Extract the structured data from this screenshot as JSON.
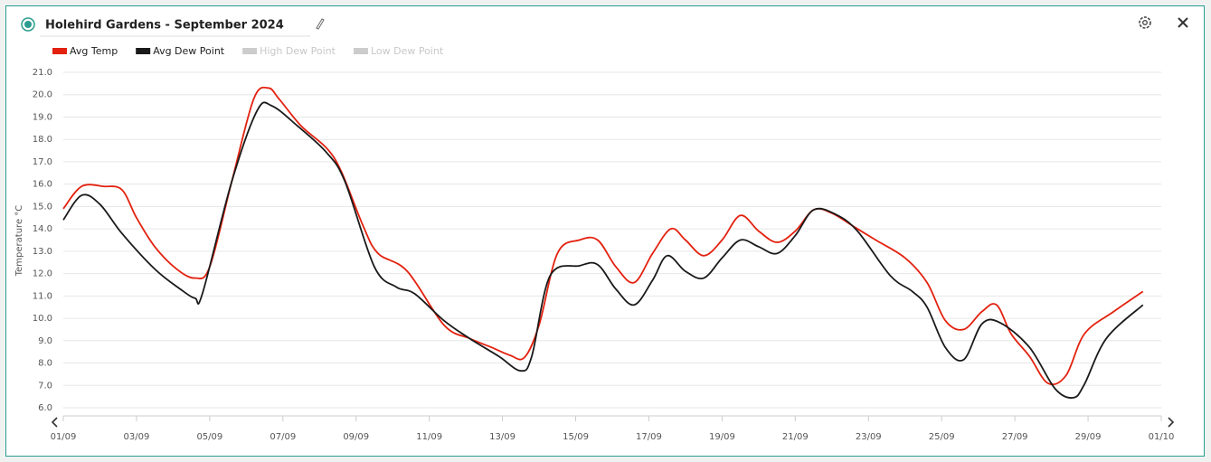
{
  "chart_data": {
    "type": "line",
    "title": "Holehird Gardens - September 2024",
    "ylabel": "Temperature °C",
    "xlim": [
      0,
      30
    ],
    "xticks": [
      {
        "value": 0,
        "label": "01/09"
      },
      {
        "value": 2,
        "label": "03/09"
      },
      {
        "value": 4,
        "label": "05/09"
      },
      {
        "value": 6,
        "label": "07/09"
      },
      {
        "value": 8,
        "label": "09/09"
      },
      {
        "value": 10,
        "label": "11/09"
      },
      {
        "value": 12,
        "label": "13/09"
      },
      {
        "value": 14,
        "label": "15/09"
      },
      {
        "value": 16,
        "label": "17/09"
      },
      {
        "value": 18,
        "label": "19/09"
      },
      {
        "value": 20,
        "label": "21/09"
      },
      {
        "value": 22,
        "label": "23/09"
      },
      {
        "value": 24,
        "label": "25/09"
      },
      {
        "value": 26,
        "label": "27/09"
      },
      {
        "value": 28,
        "label": "29/09"
      },
      {
        "value": 30,
        "label": "01/10"
      }
    ],
    "ylim": [
      6,
      21
    ],
    "yticks": [
      {
        "value": 6,
        "label": "6.0"
      },
      {
        "value": 7,
        "label": "7.0"
      },
      {
        "value": 8,
        "label": "8.0"
      },
      {
        "value": 9,
        "label": "9.0"
      },
      {
        "value": 10,
        "label": "10.0"
      },
      {
        "value": 11,
        "label": "11.0"
      },
      {
        "value": 12,
        "label": "12.0"
      },
      {
        "value": 13,
        "label": "13.0"
      },
      {
        "value": 14,
        "label": "14.0"
      },
      {
        "value": 15,
        "label": "15.0"
      },
      {
        "value": 16,
        "label": "16.0"
      },
      {
        "value": 17,
        "label": "17.0"
      },
      {
        "value": 18,
        "label": "18.0"
      },
      {
        "value": 19,
        "label": "19.0"
      },
      {
        "value": 20,
        "label": "20.0"
      },
      {
        "value": 21,
        "label": "21.0"
      }
    ],
    "grid": true,
    "series": [
      {
        "name": "Avg Temp",
        "color": "#e3210f",
        "hidden": false,
        "x": [
          0,
          0.5,
          1.1,
          1.6,
          2.0,
          2.5,
          3.1,
          3.6,
          4.0,
          4.6,
          5.2,
          5.6,
          5.9,
          6.5,
          7.2,
          7.6,
          8.2,
          8.6,
          9.4,
          10.4,
          11.1,
          11.7,
          12.2,
          12.6,
          13.0,
          13.5,
          14.1,
          14.6,
          15.1,
          15.6,
          16.1,
          16.6,
          17.0,
          17.5,
          18.0,
          18.5,
          19.0,
          19.5,
          20.0,
          20.5,
          21.0,
          21.6,
          22.2,
          23.0,
          23.6,
          24.1,
          24.6,
          25.1,
          25.5,
          25.9,
          26.4,
          26.9,
          27.4,
          27.9,
          28.7,
          29.5
        ],
        "values": [
          14.9,
          15.9,
          15.9,
          15.75,
          14.5,
          13.2,
          12.2,
          11.8,
          12.3,
          16.1,
          19.8,
          20.3,
          19.8,
          18.6,
          17.6,
          16.55,
          14.1,
          12.9,
          12.1,
          9.7,
          9.1,
          8.7,
          8.35,
          8.25,
          9.7,
          12.9,
          13.5,
          13.5,
          12.3,
          11.6,
          12.9,
          14.0,
          13.5,
          12.8,
          13.5,
          14.6,
          13.9,
          13.4,
          13.9,
          14.85,
          14.7,
          14.1,
          13.5,
          12.7,
          11.6,
          9.9,
          9.5,
          10.3,
          10.6,
          9.3,
          8.3,
          7.1,
          7.45,
          9.3,
          10.3,
          11.2
        ]
      },
      {
        "name": "Avg Dew Point",
        "color": "#1a1a1a",
        "hidden": false,
        "x": [
          0,
          0.5,
          1.0,
          1.6,
          2.5,
          3.2,
          3.6,
          3.8,
          4.6,
          5.3,
          5.7,
          6.4,
          7.2,
          7.7,
          8.5,
          9.1,
          9.6,
          10.4,
          11.1,
          11.9,
          12.5,
          12.8,
          13.3,
          14.1,
          14.6,
          15.1,
          15.6,
          16.1,
          16.5,
          17.0,
          17.5,
          18.0,
          18.5,
          19.0,
          19.5,
          20.0,
          20.5,
          21.1,
          21.7,
          22.6,
          23.2,
          23.6,
          24.1,
          24.6,
          25.1,
          25.6,
          26.4,
          27.1,
          27.6,
          27.9,
          28.5,
          29.5
        ],
        "values": [
          14.4,
          15.5,
          15.1,
          13.8,
          12.2,
          11.3,
          10.9,
          11.1,
          16.1,
          19.3,
          19.5,
          18.6,
          17.4,
          16.1,
          12.3,
          11.4,
          11.1,
          9.9,
          9.1,
          8.3,
          7.65,
          8.3,
          11.9,
          12.35,
          12.4,
          11.3,
          10.6,
          11.7,
          12.8,
          12.1,
          11.8,
          12.7,
          13.5,
          13.2,
          12.9,
          13.7,
          14.85,
          14.65,
          13.9,
          11.9,
          11.2,
          10.5,
          8.7,
          8.15,
          9.75,
          9.8,
          8.7,
          6.85,
          6.45,
          7.05,
          9.1,
          10.6
        ]
      },
      {
        "name": "High Dew Point",
        "color": "#cccccc",
        "hidden": true,
        "x": [],
        "values": []
      },
      {
        "name": "Low Dew Point",
        "color": "#cccccc",
        "hidden": true,
        "x": [],
        "values": []
      }
    ]
  }
}
